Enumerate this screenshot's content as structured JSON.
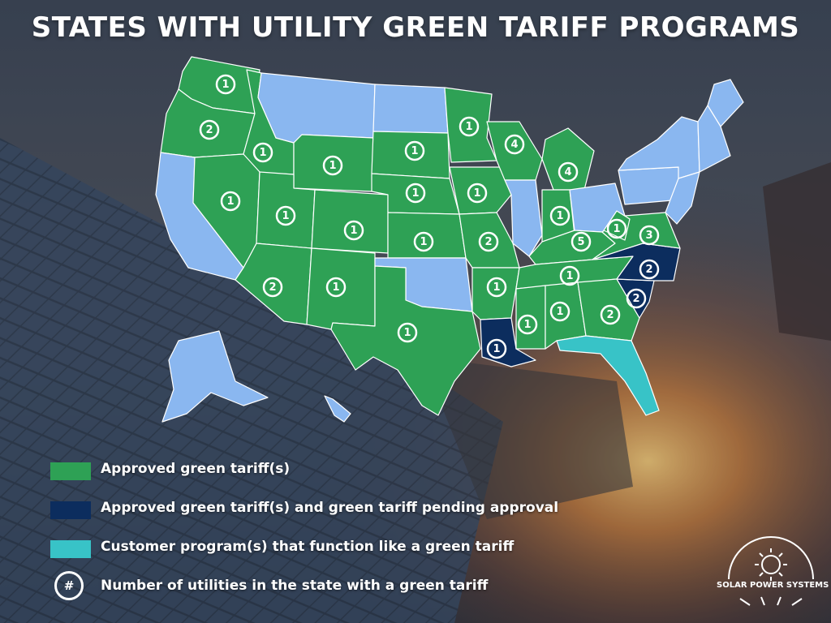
{
  "title": "STATES WITH UTILITY GREEN TARIFF PROGRAMS",
  "colors": {
    "approved": "#2ea155",
    "approved_pending": "#0c2d5e",
    "customer_program": "#38c3c7",
    "no_program": "#8ab7f0",
    "badge_border": "#ffffff"
  },
  "legend": [
    {
      "key": "approved",
      "label": "Approved green tariff(s)",
      "color": "#2ea155"
    },
    {
      "key": "approved_pending",
      "label": "Approved green tariff(s) and green tariff pending approval",
      "color": "#0c2d5e"
    },
    {
      "key": "customer_program",
      "label": "Customer program(s) that function like a green tariff",
      "color": "#38c3c7"
    },
    {
      "key": "count",
      "label": "Number of utilities in the state with a green tariff",
      "symbol": "#"
    }
  ],
  "states": [
    {
      "id": "WA",
      "status": "approved",
      "count": "1"
    },
    {
      "id": "OR",
      "status": "approved",
      "count": "2"
    },
    {
      "id": "ID",
      "status": "approved",
      "count": "1"
    },
    {
      "id": "WY",
      "status": "approved",
      "count": "1"
    },
    {
      "id": "ND",
      "status": "none"
    },
    {
      "id": "SD",
      "status": "approved",
      "count": "1"
    },
    {
      "id": "MN",
      "status": "approved",
      "count": "1"
    },
    {
      "id": "WI",
      "status": "approved",
      "count": "4"
    },
    {
      "id": "MI",
      "status": "approved",
      "count": "4"
    },
    {
      "id": "NV",
      "status": "approved",
      "count": "1"
    },
    {
      "id": "UT",
      "status": "approved",
      "count": "1"
    },
    {
      "id": "CO",
      "status": "approved",
      "count": "1"
    },
    {
      "id": "NE",
      "status": "approved",
      "count": "1"
    },
    {
      "id": "IA",
      "status": "approved",
      "count": "1"
    },
    {
      "id": "IN",
      "status": "approved",
      "count": "1"
    },
    {
      "id": "KS",
      "status": "approved",
      "count": "1"
    },
    {
      "id": "MO",
      "status": "approved",
      "count": "2"
    },
    {
      "id": "KY",
      "status": "approved",
      "count": "5"
    },
    {
      "id": "WV",
      "status": "approved",
      "count": "1"
    },
    {
      "id": "VA",
      "status": "approved",
      "count": "3"
    },
    {
      "id": "AZ",
      "status": "approved",
      "count": "2"
    },
    {
      "id": "NM",
      "status": "approved",
      "count": "1"
    },
    {
      "id": "AR",
      "status": "approved",
      "count": "1"
    },
    {
      "id": "TN",
      "status": "approved",
      "count": "1"
    },
    {
      "id": "NC",
      "status": "approved_pending",
      "count": "2"
    },
    {
      "id": "SC",
      "status": "approved_pending",
      "count": "2"
    },
    {
      "id": "TX",
      "status": "approved",
      "count": "1"
    },
    {
      "id": "MS",
      "status": "approved",
      "count": "1"
    },
    {
      "id": "AL",
      "status": "approved",
      "count": "1"
    },
    {
      "id": "GA",
      "status": "approved",
      "count": "2"
    },
    {
      "id": "LA",
      "status": "approved_pending",
      "count": "1"
    },
    {
      "id": "FL",
      "status": "customer_program"
    },
    {
      "id": "MT",
      "status": "none"
    },
    {
      "id": "CA",
      "status": "none"
    },
    {
      "id": "OK",
      "status": "none"
    },
    {
      "id": "IL",
      "status": "none"
    },
    {
      "id": "OH",
      "status": "none"
    },
    {
      "id": "PA",
      "status": "none"
    },
    {
      "id": "NY",
      "status": "none"
    },
    {
      "id": "ME",
      "status": "none"
    },
    {
      "id": "AK",
      "status": "none"
    },
    {
      "id": "HI",
      "status": "none"
    }
  ],
  "logo": {
    "text": "SOLAR POWER SYSTEMS"
  }
}
